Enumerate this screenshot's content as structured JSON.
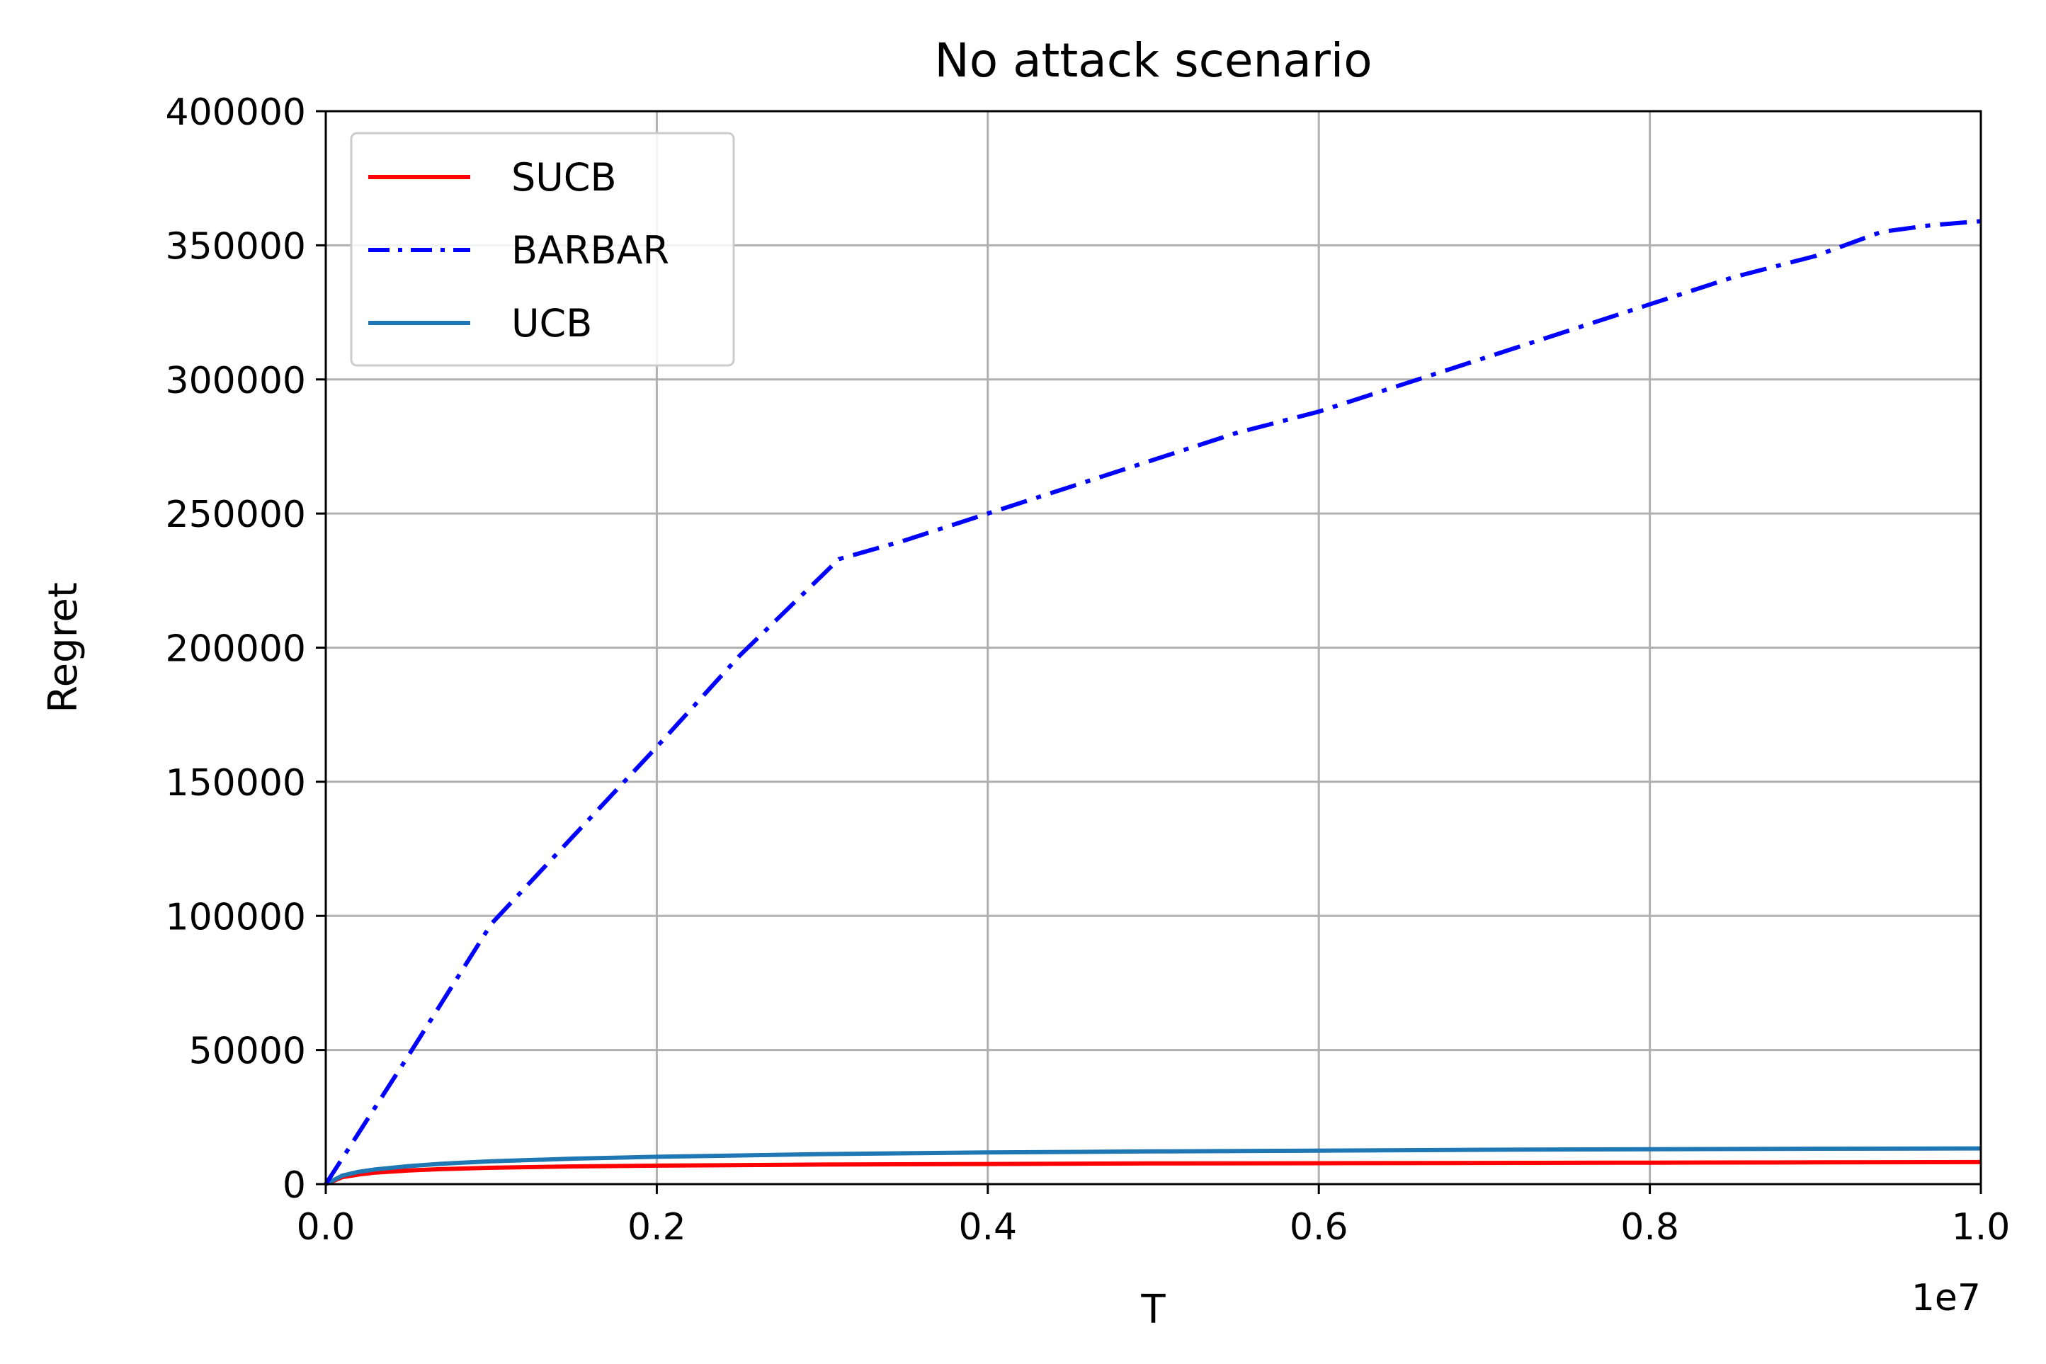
{
  "chart_data": {
    "type": "line",
    "title": "No attack scenario",
    "xlabel": "T",
    "ylabel": "Regret",
    "x_offset_label": "1e7",
    "xlim": [
      0,
      10000000
    ],
    "ylim": [
      0,
      400000
    ],
    "x_tick_values": [
      0,
      2000000,
      4000000,
      6000000,
      8000000,
      10000000
    ],
    "x_tick_labels": [
      "0.0",
      "0.2",
      "0.4",
      "0.6",
      "0.8",
      "1.0"
    ],
    "y_tick_values": [
      0,
      50000,
      100000,
      150000,
      200000,
      250000,
      300000,
      350000,
      400000
    ],
    "y_tick_labels": [
      "0",
      "50000",
      "100000",
      "150000",
      "200000",
      "250000",
      "300000",
      "350000",
      "400000"
    ],
    "grid": true,
    "legend_position": "top-left",
    "series": [
      {
        "name": "SUCB",
        "color": "#ff0000",
        "style": "solid",
        "x": [
          0,
          100000,
          200000,
          300000,
          500000,
          700000,
          1000000,
          1500000,
          2000000,
          3000000,
          4000000,
          5000000,
          6000000,
          7000000,
          8000000,
          9000000,
          10000000
        ],
        "y": [
          0,
          2600,
          3600,
          4300,
          5100,
          5600,
          6100,
          6600,
          6900,
          7300,
          7500,
          7700,
          7800,
          7900,
          8000,
          8100,
          8200
        ]
      },
      {
        "name": "BARBAR",
        "color": "#0000ff",
        "style": "dashdot",
        "x": [
          0,
          500000,
          1000000,
          1500000,
          2000000,
          2500000,
          3100000,
          3500000,
          4000000,
          4500000,
          5000000,
          5500000,
          6000000,
          6500000,
          7000000,
          7500000,
          8000000,
          8500000,
          9000000,
          9400000,
          9700000,
          10000000
        ],
        "y": [
          0,
          48000,
          97000,
          130000,
          163000,
          197000,
          233000,
          240000,
          250000,
          260000,
          270000,
          280000,
          288000,
          298000,
          308000,
          318000,
          328000,
          338000,
          346000,
          355000,
          357500,
          359000
        ]
      },
      {
        "name": "UCB",
        "color": "#1f77b4",
        "style": "solid",
        "x": [
          0,
          100000,
          200000,
          300000,
          500000,
          700000,
          1000000,
          1500000,
          2000000,
          3000000,
          4000000,
          5000000,
          6000000,
          7000000,
          8000000,
          9000000,
          10000000
        ],
        "y": [
          0,
          3200,
          4600,
          5500,
          6700,
          7600,
          8500,
          9500,
          10200,
          11200,
          11800,
          12200,
          12500,
          12800,
          13000,
          13200,
          13300
        ]
      }
    ]
  }
}
